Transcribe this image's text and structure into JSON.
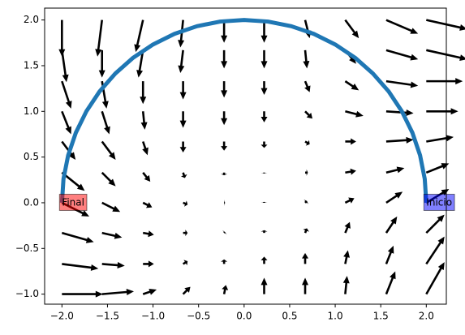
{
  "chart_data": {
    "type": "quiver",
    "x": [
      -2,
      -1.56,
      -1.11,
      -0.67,
      -0.22,
      0.22,
      0.67,
      1.11,
      1.56,
      2
    ],
    "y": [
      2,
      1.67,
      1.33,
      1,
      0.67,
      0.33,
      0,
      -0.33,
      -0.67,
      -1
    ],
    "u": [
      [
        0,
        -0.05,
        -0.08,
        -0.03,
        0,
        0,
        0.05,
        0.15,
        0.35,
        0.45
      ],
      [
        0.05,
        0,
        -0.05,
        -0.03,
        0,
        0,
        0.02,
        0.12,
        0.35,
        0.45
      ],
      [
        0.1,
        0.05,
        0,
        0,
        0,
        0,
        0.05,
        0.15,
        0.35,
        0.4
      ],
      [
        0.1,
        0.08,
        0.02,
        0,
        0,
        0,
        0.08,
        0.2,
        0.3,
        0.35
      ],
      [
        0.15,
        0.15,
        0.05,
        0,
        0,
        0,
        0.05,
        0.12,
        0.3,
        0.3
      ],
      [
        0.25,
        0.15,
        0.08,
        0.02,
        0,
        0,
        0.03,
        0.12,
        0.2,
        0.25
      ],
      [
        0.3,
        0.2,
        0.1,
        0.05,
        0.01,
        0,
        0.02,
        0.1,
        0.18,
        0.25
      ],
      [
        0.35,
        0.22,
        0.12,
        0.05,
        0.01,
        0,
        0.02,
        0.05,
        0.12,
        0.2
      ],
      [
        0.4,
        0.25,
        0.12,
        0.05,
        0,
        0,
        0,
        0.03,
        0.08,
        0.2
      ],
      [
        0.45,
        0.35,
        0.15,
        0.08,
        0.02,
        0,
        0,
        0.02,
        0.1,
        0.2
      ]
    ],
    "v": [
      [
        -0.4,
        -0.4,
        -0.35,
        -0.3,
        -0.25,
        -0.25,
        -0.2,
        -0.2,
        -0.15,
        -0.1
      ],
      [
        -0.35,
        -0.3,
        -0.3,
        -0.25,
        -0.2,
        -0.2,
        -0.2,
        -0.15,
        -0.1,
        -0.1
      ],
      [
        -0.3,
        -0.3,
        -0.25,
        -0.2,
        -0.18,
        -0.15,
        -0.12,
        -0.1,
        -0.05,
        0
      ],
      [
        -0.25,
        -0.25,
        -0.2,
        -0.18,
        -0.15,
        -0.12,
        -0.08,
        -0.05,
        -0.02,
        0
      ],
      [
        -0.2,
        -0.2,
        -0.15,
        -0.12,
        -0.1,
        -0.07,
        -0.03,
        0,
        0.02,
        0.05
      ],
      [
        -0.2,
        -0.15,
        -0.1,
        -0.06,
        -0.03,
        -0.01,
        0,
        0.02,
        0.05,
        0.1
      ],
      [
        -0.15,
        -0.1,
        -0.05,
        -0.02,
        0,
        0.01,
        0.02,
        0.05,
        0.12,
        0.15
      ],
      [
        -0.1,
        -0.05,
        -0.02,
        0,
        0.01,
        0.03,
        0.05,
        0.12,
        0.18,
        0.2
      ],
      [
        -0.05,
        -0.02,
        0,
        0.03,
        0.05,
        0.08,
        0.12,
        0.15,
        0.2,
        0.3
      ],
      [
        0,
        0.03,
        0.05,
        0.08,
        0.1,
        0.18,
        0.18,
        0.2,
        0.25,
        0.35
      ]
    ],
    "arrow_color": "#000000",
    "path": {
      "color": "#1f77b4",
      "x": [
        2,
        1.983,
        1.932,
        1.848,
        1.732,
        1.587,
        1.414,
        1.218,
        1,
        0.765,
        0.518,
        0.261,
        0,
        -0.261,
        -0.518,
        -0.765,
        -1,
        -1.218,
        -1.414,
        -1.587,
        -1.732,
        -1.848,
        -1.932,
        -1.983,
        -2
      ],
      "y": [
        0,
        0.261,
        0.518,
        0.765,
        1,
        1.218,
        1.414,
        1.587,
        1.732,
        1.848,
        1.932,
        1.983,
        2,
        1.983,
        1.932,
        1.848,
        1.732,
        1.587,
        1.414,
        1.218,
        1,
        0.765,
        0.518,
        0.261,
        0
      ]
    },
    "annotations": [
      {
        "text": "Inicio",
        "x": 2,
        "y": 0,
        "color": "#0000ff"
      },
      {
        "text": "Final",
        "x": -2,
        "y": 0,
        "color": "#ff0000"
      }
    ],
    "xlim": [
      -2.19,
      2.22
    ],
    "ylim": [
      -1.11,
      2.13
    ],
    "xticks": [
      {
        "value": -2,
        "label": "−2.0"
      },
      {
        "value": -1.5,
        "label": "−1.5"
      },
      {
        "value": -1,
        "label": "−1.0"
      },
      {
        "value": -0.5,
        "label": "−0.5"
      },
      {
        "value": 0,
        "label": "0.0"
      },
      0.5,
      {
        "value": 1,
        "label": "1.0"
      },
      1.5,
      {
        "value": 2,
        "label": "2.0"
      }
    ],
    "yticks": [
      {
        "value": -1,
        "label": "−1.0"
      },
      {
        "value": -0.5,
        "label": "−0.5"
      },
      {
        "value": 0,
        "label": "0.0"
      },
      0.5,
      {
        "value": 1,
        "label": "1.0"
      },
      1.5,
      {
        "value": 2,
        "label": "2.0"
      }
    ]
  }
}
